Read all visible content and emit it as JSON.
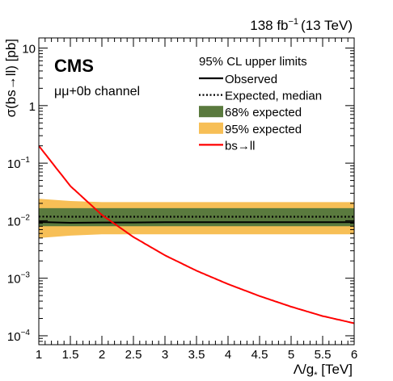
{
  "header": {
    "lumi": "138 fb",
    "lumi_exp": "−1",
    "energy": "(13 TeV)",
    "experiment": "CMS",
    "channel": "μμ+0b channel"
  },
  "legend": {
    "title": "95% CL upper limits",
    "items": [
      {
        "label": "Observed",
        "style": "solid-black"
      },
      {
        "label": "Expected, median",
        "style": "dotted-black"
      },
      {
        "label": "68% expected",
        "style": "band",
        "color": "#5a7a3e"
      },
      {
        "label": "95% expected",
        "style": "band",
        "color": "#f7bf56"
      },
      {
        "label": "bs→ll",
        "style": "solid-red",
        "color": "#ff0000"
      }
    ]
  },
  "chart_data": {
    "type": "line",
    "title": "",
    "xlabel": "Λ/g",
    "xlabel_sub": "*",
    "xlabel_unit": " [TeV]",
    "ylabel": "σ(bs→ll) [pb]",
    "xlim": [
      1,
      6
    ],
    "ylim": [
      7e-05,
      15
    ],
    "yscale": "log",
    "x_ticks": [
      "1",
      "1.5",
      "2",
      "2.5",
      "3",
      "3.5",
      "4",
      "4.5",
      "5",
      "5.5",
      "6"
    ],
    "y_ticks": [
      {
        "base": "10",
        "exp": "−4",
        "value": 0.0001
      },
      {
        "base": "10",
        "exp": "−3",
        "value": 0.001
      },
      {
        "base": "10",
        "exp": "−2",
        "value": 0.01
      },
      {
        "base": "10",
        "exp": "−1",
        "value": 0.1
      },
      {
        "base": "1",
        "exp": "",
        "value": 1
      },
      {
        "base": "10",
        "exp": "",
        "value": 10
      }
    ],
    "x": [
      1,
      1.5,
      2,
      2.5,
      3,
      3.5,
      4,
      4.5,
      5,
      5.5,
      6
    ],
    "series": [
      {
        "name": "Observed",
        "values": [
          0.0095,
          0.0092,
          0.0093,
          0.0093,
          0.0094,
          0.0094,
          0.0094,
          0.0094,
          0.0094,
          0.0094,
          0.0094
        ]
      },
      {
        "name": "Expected, median",
        "values": [
          0.0118,
          0.0117,
          0.0117,
          0.0117,
          0.0117,
          0.0117,
          0.0117,
          0.0117,
          0.0117,
          0.0117,
          0.0117
        ]
      },
      {
        "name": "68% expected",
        "lower": [
          0.008,
          0.008,
          0.008,
          0.008,
          0.008,
          0.008,
          0.008,
          0.008,
          0.008,
          0.008,
          0.008
        ],
        "upper": [
          0.0165,
          0.0165,
          0.0165,
          0.0165,
          0.0165,
          0.0165,
          0.0165,
          0.0165,
          0.0165,
          0.0165,
          0.0165
        ]
      },
      {
        "name": "95% expected",
        "lower": [
          0.005,
          0.0055,
          0.0058,
          0.0058,
          0.0058,
          0.0058,
          0.0058,
          0.0058,
          0.0058,
          0.0058,
          0.0058
        ],
        "upper": [
          0.024,
          0.022,
          0.021,
          0.021,
          0.021,
          0.021,
          0.021,
          0.021,
          0.021,
          0.021,
          0.021
        ]
      },
      {
        "name": "bs→ll",
        "values": [
          0.2,
          0.04,
          0.0126,
          0.0052,
          0.0025,
          0.00135,
          0.00079,
          0.00049,
          0.00032,
          0.00022,
          0.000165
        ]
      }
    ]
  }
}
